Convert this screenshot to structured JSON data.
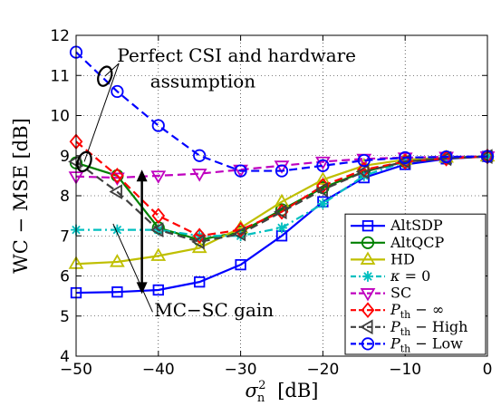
{
  "chart_data": {
    "type": "line",
    "xlabel": "σn² [dB]",
    "ylabel": "WC − MSE [dB]",
    "xlim": [
      -50,
      0
    ],
    "ylim": [
      4,
      12
    ],
    "xticks": [
      -50,
      -40,
      -30,
      -20,
      -10,
      0
    ],
    "yticks": [
      4,
      5,
      6,
      7,
      8,
      9,
      10,
      11,
      12
    ],
    "xtick_labels": [
      "−50",
      "−40",
      "−30",
      "−20",
      "−10",
      "0"
    ],
    "ytick_labels": [
      "4",
      "5",
      "6",
      "7",
      "8",
      "9",
      "10",
      "11",
      "12"
    ],
    "grid": true,
    "legend_position": "lower-right",
    "x": [
      -50,
      -45,
      -40,
      -35,
      -30,
      -25,
      -20,
      -15,
      -10,
      -5,
      0
    ],
    "series": [
      {
        "name": "AltSDP",
        "color": "#0000ff",
        "marker": "square",
        "dash": "solid",
        "values": [
          5.58,
          5.6,
          5.65,
          5.85,
          6.28,
          7.0,
          7.85,
          8.45,
          8.78,
          8.92,
          8.98
        ]
      },
      {
        "name": "AltQCP",
        "color": "#008000",
        "marker": "circle",
        "dash": "solid",
        "values": [
          8.82,
          8.5,
          7.2,
          6.9,
          7.1,
          7.65,
          8.2,
          8.6,
          8.85,
          8.95,
          8.98
        ]
      },
      {
        "name": "HD",
        "color": "#bfbf00",
        "marker": "triangle-up",
        "dash": "solid",
        "values": [
          6.3,
          6.35,
          6.5,
          6.7,
          7.2,
          7.85,
          8.4,
          8.75,
          8.9,
          8.95,
          8.98
        ]
      },
      {
        "name": "κ = 0",
        "color": "#00bfbf",
        "marker": "asterisk",
        "dash": "dashdot",
        "values": [
          7.15,
          7.15,
          7.15,
          7.0,
          7.0,
          7.2,
          7.8,
          8.5,
          8.85,
          8.95,
          8.98
        ]
      },
      {
        "name": "SC",
        "color": "#bf00bf",
        "marker": "triangle-down",
        "dash": "dashed",
        "values": [
          8.48,
          8.45,
          8.5,
          8.55,
          8.65,
          8.75,
          8.85,
          8.92,
          8.95,
          8.97,
          8.98
        ]
      },
      {
        "name": "Pth − ∞",
        "color": "#ff0000",
        "marker": "diamond",
        "dash": "dashed",
        "values": [
          9.35,
          8.5,
          7.5,
          7.0,
          7.15,
          7.6,
          8.25,
          8.65,
          8.85,
          8.93,
          8.98
        ]
      },
      {
        "name": "Pth − High",
        "color": "#404040",
        "marker": "triangle-left",
        "dash": "dashed",
        "values": [
          8.85,
          8.1,
          7.15,
          6.85,
          7.05,
          7.6,
          8.15,
          8.6,
          8.85,
          8.93,
          8.98
        ]
      },
      {
        "name": "Pth − Low",
        "color": "#0000ff",
        "marker": "circle",
        "dash": "dashed",
        "values": [
          11.58,
          10.6,
          9.75,
          9.0,
          8.62,
          8.62,
          8.75,
          8.88,
          8.95,
          8.97,
          8.98
        ]
      }
    ],
    "annotations": [
      {
        "text": "Perfect CSI and hardware",
        "anchor": [
          -45,
          11.35
        ]
      },
      {
        "text": "assumption",
        "anchor": [
          -41,
          10.7
        ]
      },
      {
        "text": "MC−SC gain",
        "anchor": [
          -40.5,
          5.0
        ]
      }
    ],
    "gain_arrow": {
      "x": -42,
      "y_from": 8.65,
      "y_to": 5.55
    },
    "ellipses": [
      {
        "cx": -46.5,
        "cy": 10.98
      },
      {
        "cx": -49.0,
        "cy": 8.85
      }
    ],
    "leader_lines": [
      {
        "from": [
          -44.8,
          11.3
        ],
        "to": [
          -46.5,
          10.98
        ]
      },
      {
        "from": [
          -44.8,
          11.3
        ],
        "to": [
          -49.0,
          8.85
        ]
      },
      {
        "from": [
          -40.7,
          5.1
        ],
        "to": [
          -45.5,
          7.3
        ]
      }
    ]
  }
}
